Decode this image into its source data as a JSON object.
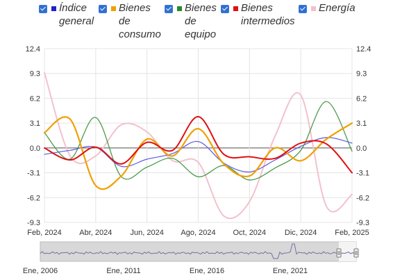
{
  "legend": [
    {
      "label": "Índice\ngeneral",
      "color": "#2020d0"
    },
    {
      "label": "Bienes\nde\nconsumo",
      "color": "#f0a000"
    },
    {
      "label": "Bienes\nde\nequipo",
      "color": "#2a8a2a"
    },
    {
      "label": "Bienes\nintermedios",
      "color": "#e01010"
    },
    {
      "label": "Energía",
      "color": "#f4c0cc"
    }
  ],
  "chart_data": {
    "type": "line",
    "x_ticks": [
      "Feb, 2024",
      "Abr, 2024",
      "Jun, 2024",
      "Ago, 2024",
      "Oct, 2024",
      "Dic, 2024",
      "Feb, 2025"
    ],
    "y_ticks": [
      "12.4",
      "9.3",
      "6.2",
      "3.1",
      "0.0",
      "-3.1",
      "-6.2",
      "-9.3"
    ],
    "ylim": [
      -9.3,
      12.4
    ],
    "grid": true,
    "legend_position": "top",
    "series": [
      {
        "name": "Índice general",
        "color": "#5a5ae0",
        "x": [
          "2024-02",
          "2024-03",
          "2024-04",
          "2024-05",
          "2024-06",
          "2024-07",
          "2024-08",
          "2024-09",
          "2024-10",
          "2024-11",
          "2024-12",
          "2025-01",
          "2025-02"
        ],
        "values": [
          -0.8,
          -0.3,
          0.1,
          -2.3,
          -1.4,
          -0.7,
          0.8,
          -1.9,
          -3.0,
          -1.5,
          0.2,
          1.3,
          0.6
        ]
      },
      {
        "name": "Bienes de consumo",
        "color": "#f0a000",
        "x": [
          "2024-02",
          "2024-03",
          "2024-04",
          "2024-05",
          "2024-06",
          "2024-07",
          "2024-08",
          "2024-09",
          "2024-10",
          "2024-11",
          "2024-12",
          "2025-01",
          "2025-02"
        ],
        "values": [
          1.9,
          3.6,
          -4.7,
          -3.5,
          1.1,
          -1.0,
          2.4,
          -2.0,
          -3.5,
          0.0,
          -1.6,
          1.1,
          3.1
        ]
      },
      {
        "name": "Bienes de equipo",
        "color": "#4a9a4a",
        "x": [
          "2024-02",
          "2024-03",
          "2024-04",
          "2024-05",
          "2024-06",
          "2024-07",
          "2024-08",
          "2024-09",
          "2024-10",
          "2024-11",
          "2024-12",
          "2025-01",
          "2025-02"
        ],
        "values": [
          1.9,
          -1.4,
          3.8,
          -3.6,
          -2.4,
          -1.3,
          -3.6,
          -2.2,
          -4.0,
          -2.5,
          -0.3,
          5.8,
          -0.4
        ]
      },
      {
        "name": "Bienes intermedios",
        "color": "#e01010",
        "x": [
          "2024-02",
          "2024-03",
          "2024-04",
          "2024-05",
          "2024-06",
          "2024-07",
          "2024-08",
          "2024-09",
          "2024-10",
          "2024-11",
          "2024-12",
          "2025-01",
          "2025-02"
        ],
        "values": [
          0.0,
          -1.5,
          0.1,
          -2.0,
          0.7,
          -0.3,
          3.9,
          -0.8,
          -1.1,
          -1.3,
          0.6,
          0.5,
          -3.1
        ]
      },
      {
        "name": "Energía",
        "color": "#f2c2cc",
        "x": [
          "2024-02",
          "2024-03",
          "2024-04",
          "2024-05",
          "2024-06",
          "2024-07",
          "2024-08",
          "2024-09",
          "2024-10",
          "2024-11",
          "2024-12",
          "2025-01",
          "2025-02"
        ],
        "values": [
          9.4,
          -1.0,
          -1.0,
          2.9,
          2.0,
          -1.6,
          -1.8,
          -8.5,
          -6.7,
          1.5,
          6.6,
          -7.3,
          -5.8
        ]
      }
    ]
  },
  "navigator": {
    "labels": [
      "Ene, 2006",
      "Ene, 2011",
      "Ene, 2016",
      "Ene, 2021"
    ]
  }
}
